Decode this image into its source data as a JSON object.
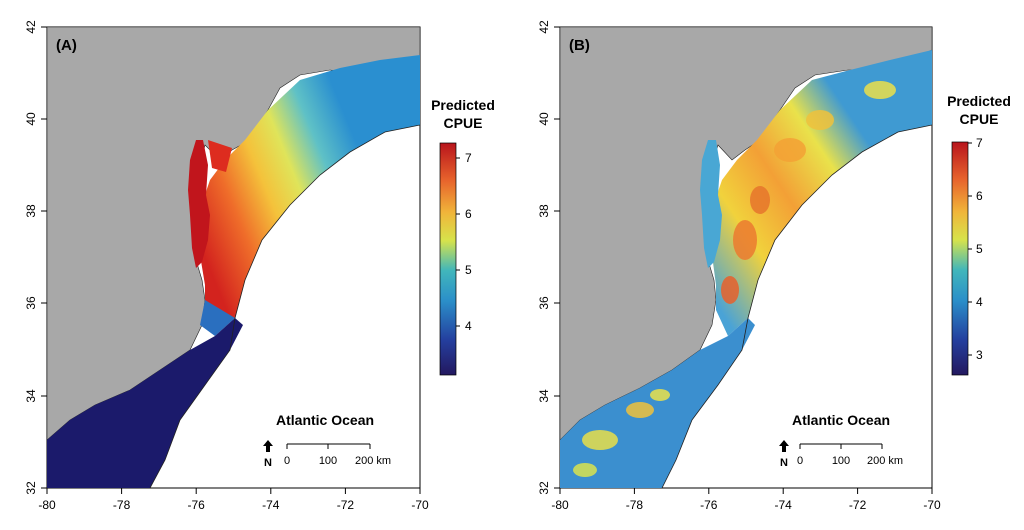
{
  "panels": [
    {
      "id": "A",
      "panel_label": "(A)",
      "x_ticks": [
        "-80",
        "-78",
        "-76",
        "-74",
        "-72",
        "-70"
      ],
      "y_ticks": [
        "42",
        "40",
        "38",
        "36",
        "34",
        "32"
      ],
      "ocean_label": "Atlantic Ocean",
      "north_label": "N",
      "scale_labels": [
        "0",
        "100",
        "200 km"
      ],
      "legend_title": [
        "Predicted",
        "CPUE"
      ],
      "legend_ticks": [
        "7",
        "6",
        "5",
        "4"
      ]
    },
    {
      "id": "B",
      "panel_label": "(B)",
      "x_ticks": [
        "-80",
        "-78",
        "-76",
        "-74",
        "-72",
        "-70"
      ],
      "y_ticks": [
        "42",
        "40",
        "38",
        "36",
        "34",
        "32"
      ],
      "ocean_label": "Atlantic Ocean",
      "north_label": "N",
      "scale_labels": [
        "0",
        "100",
        "200 km"
      ],
      "legend_title": [
        "Predicted",
        "CPUE"
      ],
      "legend_ticks": [
        "7",
        "6",
        "5",
        "4",
        "3"
      ]
    }
  ],
  "colors": {
    "land": "#a8a8a8",
    "ocean": "#ffffff",
    "cpue_high": "#c1121a",
    "cpue_mid": "#ece43a",
    "cpue_low": "#1b1a6b"
  }
}
